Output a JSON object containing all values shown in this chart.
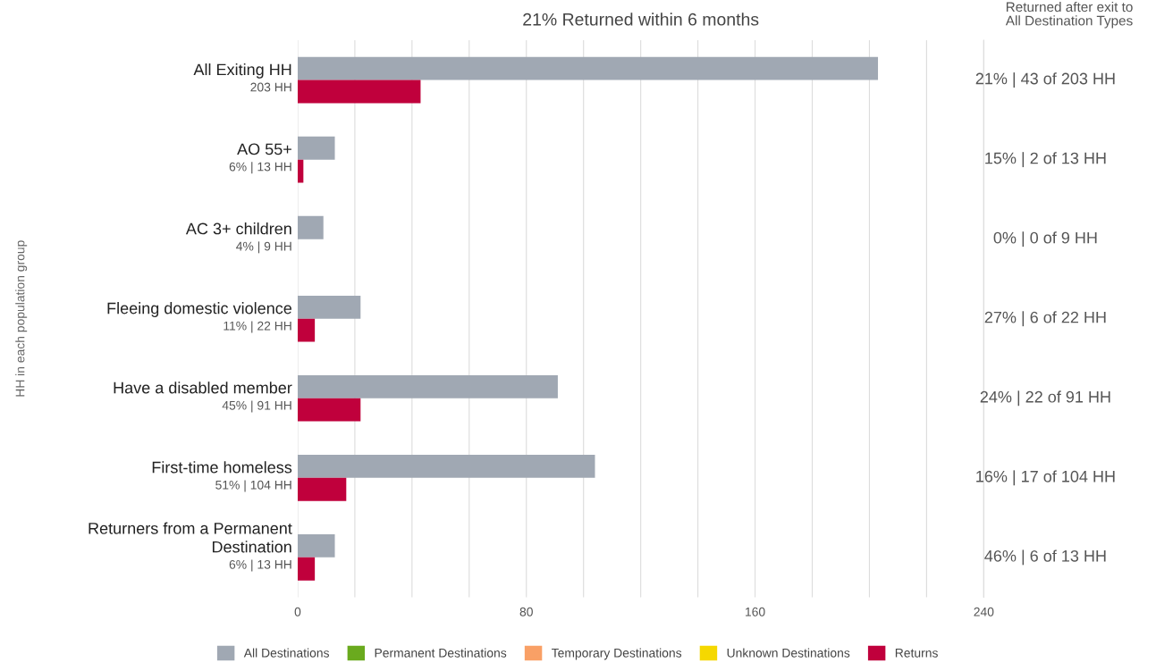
{
  "chart_data": {
    "type": "bar",
    "orientation": "horizontal",
    "title": "21% Returned within 6 months",
    "ylabel": "HH in each population group",
    "categories": [
      "All Exiting HH\n203 HH",
      "AO 55+\n6% | 13 HH",
      "AC 3+ children\n4% | 9 HH",
      "Fleeing domestic violence\n11% | 22 HH",
      "Have a disabled member\n45% | 91 HH",
      "First-time homeless\n51% | 104 HH",
      "Returners from a Permanent\nDestination\n6% | 13 HH"
    ],
    "series": [
      {
        "name": "All Destinations",
        "color": "#a0a8b3",
        "values": [
          203,
          13,
          9,
          22,
          91,
          104,
          13
        ]
      },
      {
        "name": "Permanent Destinations",
        "color": "#6aaa1e",
        "values": [
          null,
          null,
          null,
          null,
          null,
          null,
          null
        ]
      },
      {
        "name": "Temporary Destinations",
        "color": "#f9a066",
        "values": [
          null,
          null,
          null,
          null,
          null,
          null,
          null
        ]
      },
      {
        "name": "Unknown Destinations",
        "color": "#f5d800",
        "values": [
          null,
          null,
          null,
          null,
          null,
          null,
          null
        ]
      },
      {
        "name": "Returns",
        "color": "#c0003c",
        "values": [
          43,
          2,
          0,
          6,
          22,
          17,
          6
        ]
      }
    ],
    "xlim": [
      0,
      240
    ],
    "xticks": [
      0,
      {
        "value": 20,
        "label": null
      },
      {
        "value": 40,
        "label": null
      },
      {
        "value": 60,
        "label": null
      },
      80,
      {
        "value": 100,
        "label": null
      },
      {
        "value": 120,
        "label": null
      },
      {
        "value": 140,
        "label": null
      },
      160,
      {
        "value": 180,
        "label": null
      },
      {
        "value": 200,
        "label": null
      },
      {
        "value": 220,
        "label": null
      },
      240
    ],
    "grid": "x",
    "legend": "bottom",
    "annotations": [
      "Returned after exit to\nAll Destination Types",
      "21% | 43 of 203 HH",
      "15% | 2 of 13 HH",
      "0% | 0 of 9 HH",
      "27% | 6 of 22 HH",
      "24% | 22 of 91 HH",
      "16% | 17 of 104 HH",
      "46% | 6 of 13 HH"
    ]
  }
}
